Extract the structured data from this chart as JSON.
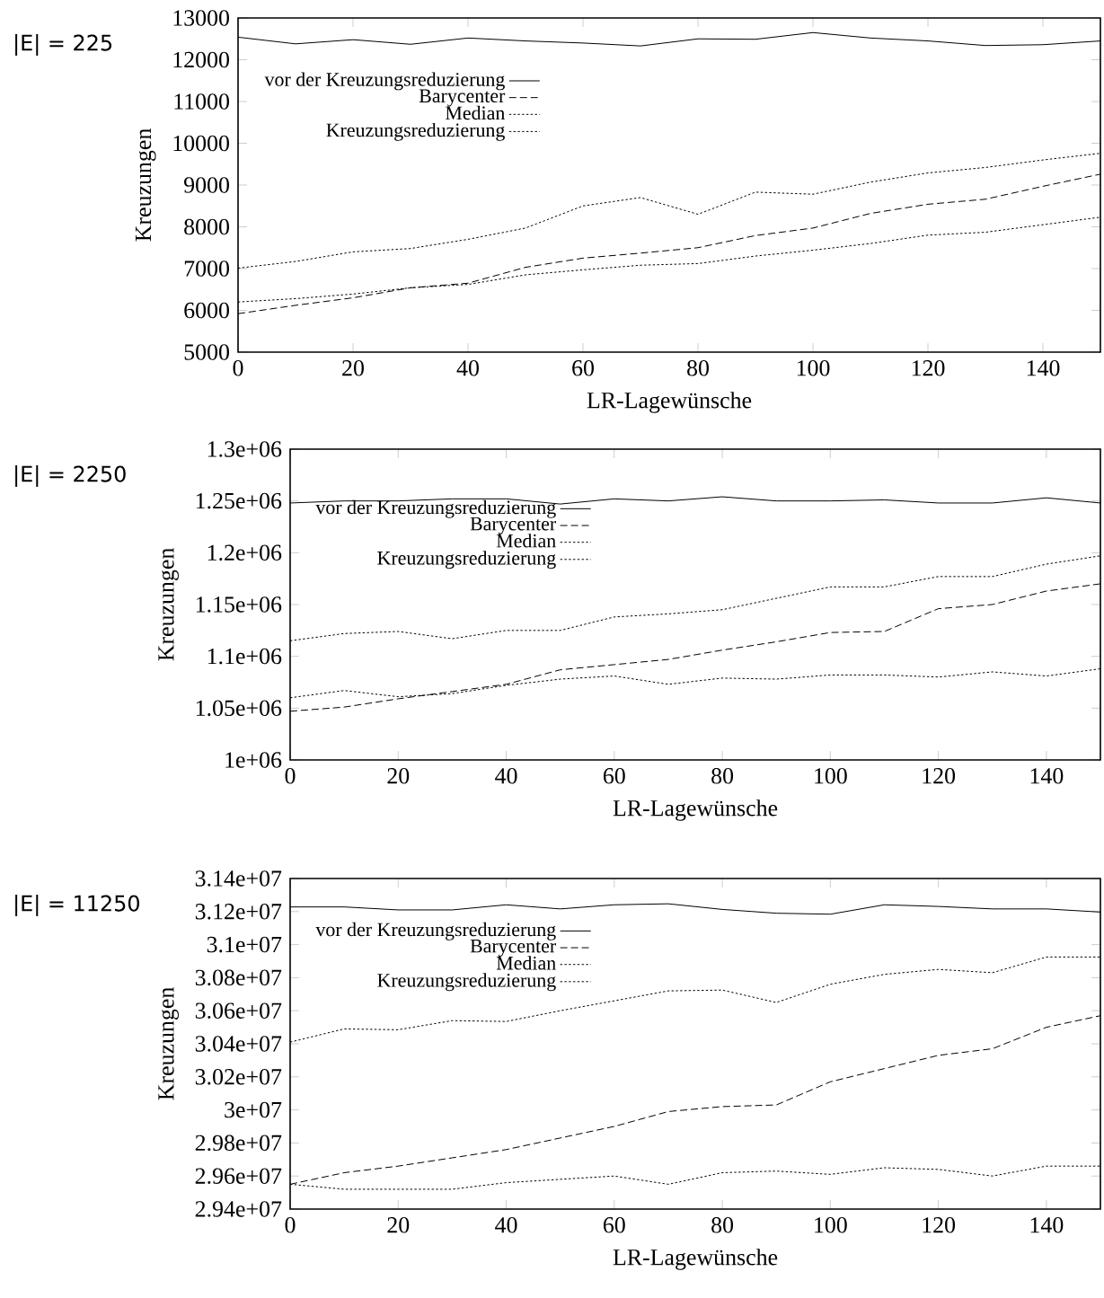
{
  "chart_data": [
    {
      "type": "line",
      "xlabel": "LR-Lagewünsche",
      "ylabel": "Kreuzungen",
      "annotations": [
        "|E| = 225"
      ],
      "x": [
        0,
        10,
        20,
        30,
        40,
        50,
        60,
        70,
        80,
        90,
        100,
        110,
        120,
        130,
        140,
        150
      ],
      "xlim": [
        0,
        150
      ],
      "xticks": [
        0,
        20,
        40,
        60,
        80,
        100,
        120,
        140
      ],
      "ylim": [
        5000,
        13000
      ],
      "yticks": [
        5000,
        6000,
        7000,
        8000,
        9000,
        10000,
        11000,
        12000,
        13000
      ],
      "legend": "top left",
      "grid": false,
      "marker": "none",
      "series": [
        {
          "name": "vor der Kreuzungsreduzierung",
          "color": "#000000",
          "line_style": "solid",
          "values": [
            12540,
            12380,
            12480,
            12370,
            12520,
            12450,
            12400,
            12330,
            12500,
            12490,
            12650,
            12520,
            12450,
            12340,
            12360,
            12450
          ]
        },
        {
          "name": "Barycenter",
          "color": "#000000",
          "line_style": "dashed",
          "values": [
            5920,
            6120,
            6300,
            6540,
            6650,
            7030,
            7250,
            7370,
            7500,
            7790,
            7970,
            8320,
            8540,
            8660,
            8970,
            9260
          ]
        },
        {
          "name": "Median",
          "color": "#000000",
          "line_style": "dotted",
          "values": [
            7010,
            7170,
            7400,
            7480,
            7700,
            7970,
            8500,
            8700,
            8300,
            8830,
            8780,
            9070,
            9290,
            9420,
            9600,
            9760
          ]
        },
        {
          "name": "Kreuzungsreduzierung",
          "color": "#000000",
          "line_style": "dotted",
          "values": [
            6200,
            6280,
            6390,
            6540,
            6620,
            6850,
            6970,
            7080,
            7120,
            7300,
            7440,
            7600,
            7800,
            7870,
            8050,
            8230
          ]
        }
      ]
    },
    {
      "type": "line",
      "xlabel": "LR-Lagewünsche",
      "ylabel": "Kreuzungen",
      "annotations": [
        "|E| = 2250"
      ],
      "x": [
        0,
        10,
        20,
        30,
        40,
        50,
        60,
        70,
        80,
        90,
        100,
        110,
        120,
        130,
        140,
        150
      ],
      "xlim": [
        0,
        150
      ],
      "xticks": [
        0,
        20,
        40,
        60,
        80,
        100,
        120,
        140
      ],
      "ylim": [
        1000000,
        1300000
      ],
      "yticks": [
        {
          "value": 1000000,
          "label": "1e+06"
        },
        {
          "value": 1050000,
          "label": "1.05e+06"
        },
        {
          "value": 1100000,
          "label": "1.1e+06"
        },
        {
          "value": 1150000,
          "label": "1.15e+06"
        },
        {
          "value": 1200000,
          "label": "1.2e+06"
        },
        {
          "value": 1250000,
          "label": "1.25e+06"
        },
        {
          "value": 1300000,
          "label": "1.3e+06"
        }
      ],
      "legend": "top left",
      "grid": false,
      "marker": "none",
      "series": [
        {
          "name": "vor der Kreuzungsreduzierung",
          "color": "#000000",
          "line_style": "solid",
          "values": [
            1248000,
            1250000,
            1250000,
            1252000,
            1252000,
            1247000,
            1252000,
            1250000,
            1254000,
            1250000,
            1250000,
            1251000,
            1248000,
            1248000,
            1253000,
            1248000
          ]
        },
        {
          "name": "Barycenter",
          "color": "#000000",
          "line_style": "dashed",
          "values": [
            1047000,
            1051000,
            1059000,
            1066000,
            1073000,
            1087000,
            1092000,
            1097000,
            1106000,
            1114000,
            1123000,
            1124000,
            1146000,
            1150000,
            1163000,
            1170000
          ]
        },
        {
          "name": "Median",
          "color": "#000000",
          "line_style": "dotted",
          "values": [
            1115000,
            1122000,
            1124000,
            1117000,
            1125000,
            1125000,
            1138000,
            1141000,
            1145000,
            1156000,
            1167000,
            1167000,
            1177000,
            1177000,
            1189000,
            1197000
          ]
        },
        {
          "name": "Kreuzungsreduzierung",
          "color": "#000000",
          "line_style": "dotted",
          "values": [
            1060000,
            1067000,
            1061000,
            1064000,
            1072000,
            1078000,
            1081000,
            1073000,
            1079000,
            1078000,
            1082000,
            1082000,
            1080000,
            1085000,
            1081000,
            1088000
          ]
        }
      ]
    },
    {
      "type": "line",
      "xlabel": "LR-Lagewünsche",
      "ylabel": "Kreuzungen",
      "annotations": [
        "|E| = 11250"
      ],
      "x": [
        0,
        10,
        20,
        30,
        40,
        50,
        60,
        70,
        80,
        90,
        100,
        110,
        120,
        130,
        140,
        150
      ],
      "xlim": [
        0,
        150
      ],
      "xticks": [
        0,
        20,
        40,
        60,
        80,
        100,
        120,
        140
      ],
      "ylim": [
        29400000,
        31400000
      ],
      "yticks": [
        {
          "value": 29400000,
          "label": "2.94e+07"
        },
        {
          "value": 29600000,
          "label": "2.96e+07"
        },
        {
          "value": 29800000,
          "label": "2.98e+07"
        },
        {
          "value": 30000000,
          "label": "3e+07"
        },
        {
          "value": 30200000,
          "label": "3.02e+07"
        },
        {
          "value": 30400000,
          "label": "3.04e+07"
        },
        {
          "value": 30600000,
          "label": "3.06e+07"
        },
        {
          "value": 30800000,
          "label": "3.08e+07"
        },
        {
          "value": 31000000,
          "label": "3.1e+07"
        },
        {
          "value": 31200000,
          "label": "3.12e+07"
        },
        {
          "value": 31400000,
          "label": "3.14e+07"
        }
      ],
      "legend": "top left",
      "grid": false,
      "marker": "none",
      "series": [
        {
          "name": "vor der Kreuzungsreduzierung",
          "color": "#000000",
          "line_style": "solid",
          "values": [
            31228000,
            31228000,
            31210000,
            31210000,
            31241000,
            31216000,
            31241000,
            31247000,
            31213000,
            31190000,
            31184000,
            31241000,
            31231000,
            31216000,
            31216000,
            31197000
          ]
        },
        {
          "name": "Barycenter",
          "color": "#000000",
          "line_style": "dashed",
          "values": [
            29550000,
            29620000,
            29660000,
            29710000,
            29760000,
            29830000,
            29900000,
            29990000,
            30020000,
            30030000,
            30170000,
            30250000,
            30330000,
            30370000,
            30500000,
            30570000
          ]
        },
        {
          "name": "Median",
          "color": "#000000",
          "line_style": "dotted",
          "values": [
            30410000,
            30490000,
            30485000,
            30540000,
            30535000,
            30600000,
            30660000,
            30720000,
            30725000,
            30650000,
            30760000,
            30820000,
            30850000,
            30830000,
            30925000,
            30925000
          ]
        },
        {
          "name": "Kreuzungsreduzierung",
          "color": "#000000",
          "line_style": "dotted",
          "values": [
            29550000,
            29520000,
            29520000,
            29520000,
            29560000,
            29580000,
            29600000,
            29550000,
            29620000,
            29630000,
            29610000,
            29650000,
            29640000,
            29600000,
            29660000,
            29660000
          ]
        }
      ]
    }
  ]
}
